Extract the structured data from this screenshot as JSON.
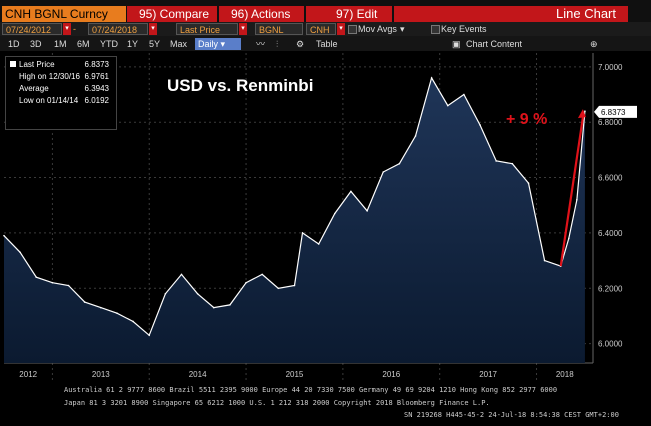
{
  "toolbar": {
    "ticker": "CNH BGNL Curncy",
    "compare_label": "95) Compare",
    "actions_label": "96) Actions",
    "edit_label": "97) Edit",
    "chart_kind": "Line Chart"
  },
  "settings": {
    "date_start": "07/24/2012",
    "date_end": "07/24/2018",
    "field": "Last Price",
    "source": "BGNL",
    "currency": "CNH",
    "mov_avgs_label": "Mov Avgs",
    "key_events_label": "Key Events"
  },
  "ranges": {
    "items": [
      "1D",
      "3D",
      "1M",
      "6M",
      "YTD",
      "1Y",
      "5Y",
      "Max"
    ],
    "frequency": "Daily",
    "table_label": "Table",
    "chart_content_label": "Chart Content"
  },
  "legend": {
    "last_price_label": "Last Price",
    "last_price_value": "6.8373",
    "high_label": "High on 12/30/16",
    "high_value": "6.9761",
    "average_label": "Average",
    "average_value": "6.3943",
    "low_label": "Low on 01/14/14",
    "low_value": "6.0192"
  },
  "colors": {
    "accent_orange": "#e87c1e",
    "button_red": "#c2161a",
    "line_white": "#ffffff",
    "area_fill": "#1f3558",
    "annotation_red": "#e0121a"
  },
  "chart_data": {
    "type": "area",
    "title": "USD vs. Renminbi",
    "x": [
      "2012-07",
      "2012-09",
      "2012-11",
      "2013-01",
      "2013-03",
      "2013-05",
      "2013-07",
      "2013-09",
      "2013-11",
      "2014-01",
      "2014-03",
      "2014-05",
      "2014-07",
      "2014-09",
      "2014-11",
      "2015-01",
      "2015-03",
      "2015-05",
      "2015-07",
      "2015-08",
      "2015-10",
      "2015-12",
      "2016-02",
      "2016-04",
      "2016-06",
      "2016-08",
      "2016-10",
      "2016-12",
      "2017-02",
      "2017-04",
      "2017-06",
      "2017-08",
      "2017-10",
      "2017-12",
      "2018-02",
      "2018-04",
      "2018-05",
      "2018-06",
      "2018-07"
    ],
    "series": [
      {
        "values": [
          6.39,
          6.33,
          6.24,
          6.22,
          6.21,
          6.15,
          6.13,
          6.11,
          6.08,
          6.03,
          6.18,
          6.25,
          6.18,
          6.13,
          6.14,
          6.22,
          6.25,
          6.2,
          6.21,
          6.4,
          6.36,
          6.47,
          6.55,
          6.48,
          6.62,
          6.65,
          6.75,
          6.96,
          6.86,
          6.9,
          6.79,
          6.66,
          6.65,
          6.58,
          6.3,
          6.28,
          6.38,
          6.52,
          6.84
        ]
      }
    ],
    "xticks": [
      "2012",
      "2013",
      "2014",
      "2015",
      "2016",
      "2017",
      "2018"
    ],
    "yticks": [
      "6.0000",
      "6.2000",
      "6.4000",
      "6.6000",
      "6.8000",
      "7.0000"
    ],
    "ylim": [
      5.93,
      7.05
    ],
    "last_value_label": "6.8373",
    "annotation": "+ 9 %",
    "grid": true
  },
  "footer": {
    "line1": "Australia 61 2 9777 8600 Brazil 5511 2395 9000 Europe 44 20 7330 7500 Germany 49 69 9204 1210 Hong Kong 852 2977 6000",
    "line2": "Japan 81 3 3201 8900        Singapore 65 6212 1000        U.S. 1 212 318 2000          Copyright 2018 Bloomberg Finance L.P.",
    "line3": "SN 219268 H445-45-2 24-Jul-18   8:54:38 CEST GMT+2:00"
  }
}
